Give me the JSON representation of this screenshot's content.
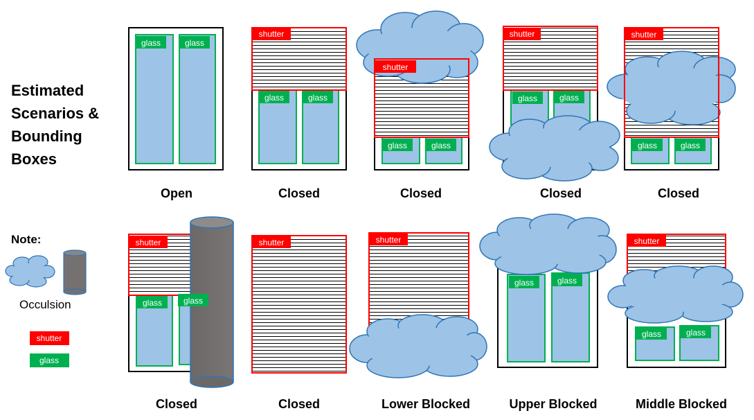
{
  "title_lines": [
    "Estimated",
    "Scenarios &",
    "Bounding",
    "Boxes"
  ],
  "labels": {
    "shutter": "shutter",
    "glass": "glass"
  },
  "colors": {
    "shutter": "#ff0000",
    "glass": "#00b050",
    "glass_fill": "#9dc3e6",
    "cloud": "#9dc3e6",
    "cloud_stroke": "#2e75b6",
    "pillar": "#767171"
  },
  "legend": {
    "note": "Note:",
    "occlusion": "Occulsion",
    "shutter": "shutter",
    "glass": "glass"
  },
  "scenarios": [
    {
      "caption": "Open"
    },
    {
      "caption": "Closed"
    },
    {
      "caption": "Closed"
    },
    {
      "caption": "Closed"
    },
    {
      "caption": "Closed"
    },
    {
      "caption": "Closed"
    },
    {
      "caption": "Closed"
    },
    {
      "caption": "Lower Blocked"
    },
    {
      "caption": "Upper Blocked"
    },
    {
      "caption": "Middle Blocked"
    }
  ]
}
